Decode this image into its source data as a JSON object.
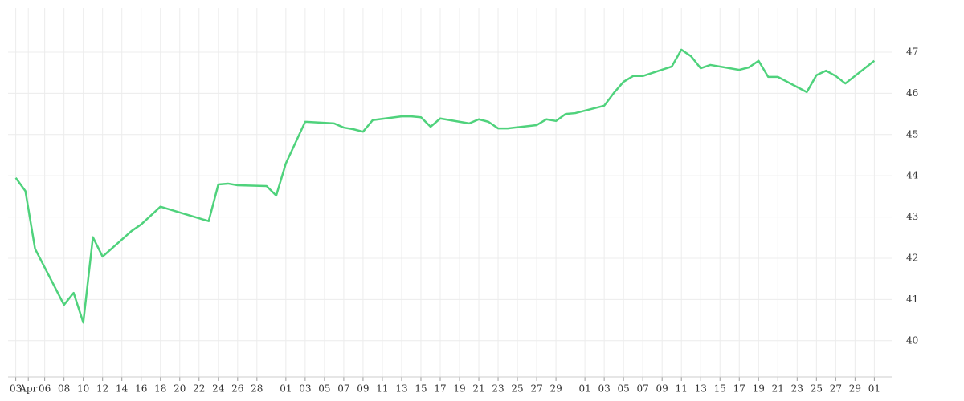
{
  "chart_data": {
    "type": "line",
    "x": [
      0,
      1,
      2,
      5,
      6,
      7,
      8,
      9,
      12,
      13,
      15,
      20,
      21,
      22,
      23,
      26,
      27,
      28,
      30,
      33,
      34,
      35,
      36,
      37,
      40,
      41,
      42,
      43,
      44,
      47,
      48,
      49,
      50,
      51,
      54,
      55,
      56,
      57,
      58,
      61,
      62,
      63,
      64,
      65,
      68,
      69,
      70,
      71,
      72,
      75,
      76,
      77,
      78,
      79,
      82,
      83,
      84,
      85,
      86,
      89
    ],
    "series": [
      {
        "color": "#4fd27c",
        "values": [
          43.95,
          43.63,
          42.23,
          40.87,
          41.16,
          40.44,
          42.51,
          42.04,
          42.66,
          42.82,
          43.25,
          42.9,
          43.79,
          43.81,
          43.77,
          43.75,
          43.52,
          44.3,
          45.31,
          45.27,
          45.17,
          45.13,
          45.07,
          45.35,
          45.44,
          45.44,
          45.42,
          45.19,
          45.39,
          45.27,
          45.37,
          45.31,
          45.15,
          45.15,
          45.23,
          45.37,
          45.33,
          45.5,
          45.52,
          45.7,
          46.01,
          46.28,
          46.42,
          46.42,
          46.65,
          47.06,
          46.9,
          46.61,
          46.69,
          46.57,
          46.63,
          46.79,
          46.4,
          46.4,
          46.03,
          46.44,
          46.55,
          46.42,
          46.24,
          46.79
        ]
      }
    ],
    "xlim": [
      -0.8,
      90.8
    ],
    "xticks": [
      {
        "value": 0,
        "label": "03"
      },
      {
        "value": 1.3,
        "label": "Apr"
      },
      {
        "value": 3,
        "label": "06"
      },
      {
        "value": 5,
        "label": "08"
      },
      {
        "value": 7,
        "label": "10"
      },
      {
        "value": 9,
        "label": "12"
      },
      {
        "value": 11,
        "label": "14"
      },
      {
        "value": 13,
        "label": "16"
      },
      {
        "value": 15,
        "label": "18"
      },
      {
        "value": 17,
        "label": "20"
      },
      {
        "value": 19,
        "label": "22"
      },
      {
        "value": 21,
        "label": "24"
      },
      {
        "value": 23,
        "label": "26"
      },
      {
        "value": 25,
        "label": "28"
      },
      {
        "value": 28,
        "label": "01"
      },
      {
        "value": 30,
        "label": "03"
      },
      {
        "value": 32,
        "label": "05"
      },
      {
        "value": 34,
        "label": "07"
      },
      {
        "value": 36,
        "label": "09"
      },
      {
        "value": 38,
        "label": "11"
      },
      {
        "value": 40,
        "label": "13"
      },
      {
        "value": 42,
        "label": "15"
      },
      {
        "value": 44,
        "label": "17"
      },
      {
        "value": 46,
        "label": "19"
      },
      {
        "value": 48,
        "label": "21"
      },
      {
        "value": 50,
        "label": "23"
      },
      {
        "value": 52,
        "label": "25"
      },
      {
        "value": 54,
        "label": "27"
      },
      {
        "value": 56,
        "label": "29"
      },
      {
        "value": 59,
        "label": "01"
      },
      {
        "value": 61,
        "label": "03"
      },
      {
        "value": 63,
        "label": "05"
      },
      {
        "value": 65,
        "label": "07"
      },
      {
        "value": 67,
        "label": "09"
      },
      {
        "value": 69,
        "label": "11"
      },
      {
        "value": 71,
        "label": "13"
      },
      {
        "value": 73,
        "label": "15"
      },
      {
        "value": 75,
        "label": "17"
      },
      {
        "value": 77,
        "label": "19"
      },
      {
        "value": 79,
        "label": "21"
      },
      {
        "value": 81,
        "label": "23"
      },
      {
        "value": 83,
        "label": "25"
      },
      {
        "value": 85,
        "label": "27"
      },
      {
        "value": 87,
        "label": "29"
      },
      {
        "value": 89,
        "label": "01"
      }
    ],
    "ylim": [
      39.12,
      48.07
    ],
    "yticks": [
      40,
      41,
      42,
      43,
      44,
      45,
      46,
      47
    ],
    "grid": true
  }
}
